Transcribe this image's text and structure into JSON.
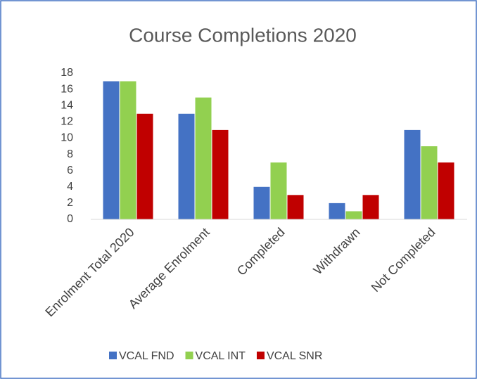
{
  "chart_data": {
    "type": "bar",
    "title": "Course Completions 2020",
    "categories": [
      "Enrolment Total 2020",
      "Average Enrolment",
      "Completed",
      "Withdrawn",
      "Not Completed"
    ],
    "series": [
      {
        "name": "VCAL FND",
        "color": "#4472c4",
        "values": [
          17,
          13,
          4,
          2,
          11
        ]
      },
      {
        "name": "VCAL INT",
        "color": "#92d050",
        "values": [
          17,
          15,
          7,
          1,
          9
        ]
      },
      {
        "name": "VCAL SNR",
        "color": "#c00000",
        "values": [
          13,
          11,
          3,
          3,
          7
        ]
      }
    ],
    "ylim": [
      0,
      18
    ],
    "yticks": [
      0,
      2,
      4,
      6,
      8,
      10,
      12,
      14,
      16,
      18
    ],
    "grid": false,
    "legend": "bottom"
  }
}
